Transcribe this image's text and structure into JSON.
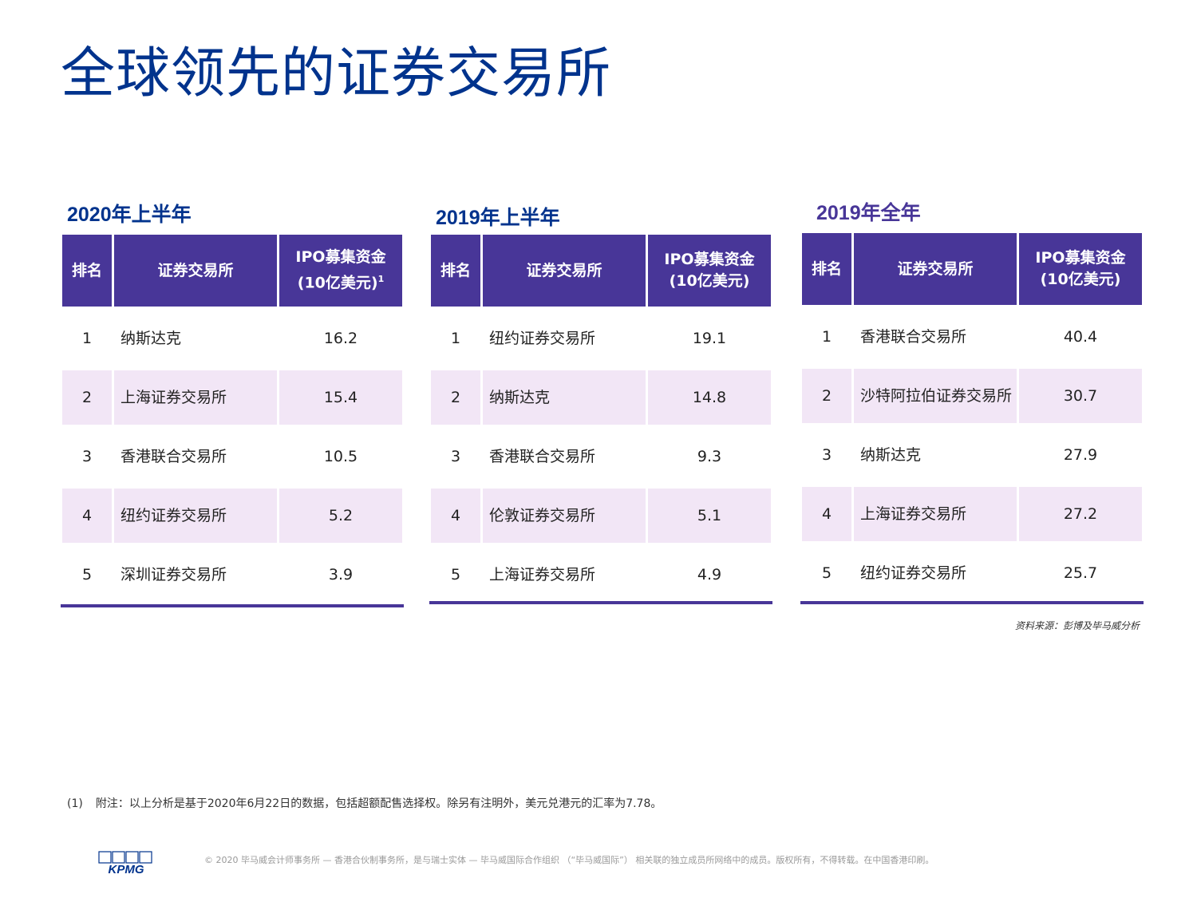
{
  "title": "全球领先的证券交易所",
  "sections": [
    {
      "heading": "2020年上半年",
      "headers": {
        "rank": "排名",
        "exchange": "证券交易所",
        "value_line1": "IPO募集资金",
        "value_line2": "(10亿美元)",
        "value_sup": "1"
      },
      "rows": [
        {
          "rank": "1",
          "exchange": "纳斯达克",
          "value": "16.2"
        },
        {
          "rank": "2",
          "exchange": "上海证券交易所",
          "value": "15.4"
        },
        {
          "rank": "3",
          "exchange": "香港联合交易所",
          "value": "10.5"
        },
        {
          "rank": "4",
          "exchange": "纽约证券交易所",
          "value": "5.2"
        },
        {
          "rank": "5",
          "exchange": "深圳证券交易所",
          "value": "3.9"
        }
      ]
    },
    {
      "heading": "2019年上半年",
      "headers": {
        "rank": "排名",
        "exchange": "证券交易所",
        "value_line1": "IPO募集资金",
        "value_line2": "(10亿美元)"
      },
      "rows": [
        {
          "rank": "1",
          "exchange": "纽约证券交易所",
          "value": "19.1"
        },
        {
          "rank": "2",
          "exchange": "纳斯达克",
          "value": "14.8"
        },
        {
          "rank": "3",
          "exchange": "香港联合交易所",
          "value": "9.3"
        },
        {
          "rank": "4",
          "exchange": "伦敦证券交易所",
          "value": "5.1"
        },
        {
          "rank": "5",
          "exchange": "上海证券交易所",
          "value": "4.9"
        }
      ]
    },
    {
      "heading": "2019年全年",
      "headers": {
        "rank": "排名",
        "exchange": "证券交易所",
        "value_line1": "IPO募集资金",
        "value_line2": "(10亿美元)"
      },
      "rows": [
        {
          "rank": "1",
          "exchange": "香港联合交易所",
          "value": "40.4"
        },
        {
          "rank": "2",
          "exchange": "沙特阿拉伯证券交易所",
          "value": "30.7"
        },
        {
          "rank": "3",
          "exchange": "纳斯达克",
          "value": "27.9"
        },
        {
          "rank": "4",
          "exchange": "上海证券交易所",
          "value": "27.2"
        },
        {
          "rank": "5",
          "exchange": "纽约证券交易所",
          "value": "25.7"
        }
      ]
    }
  ],
  "source": "资料来源：彭博及毕马威分析",
  "footnote": {
    "mark": "(1)",
    "text": "附注：以上分析是基于2020年6月22日的数据，包括超额配售选择权。除另有注明外，美元兑港元的汇率为7.78。"
  },
  "logo_text": "KPMG",
  "copyright": "© 2020 毕马威会计师事务所 — 香港合伙制事务所，是与瑞士实体 — 毕马威国际合作组织 （“毕马威国际”） 相关联的独立成员所网络中的成员。版权所有，不得转载。在中国香港印刷。"
}
